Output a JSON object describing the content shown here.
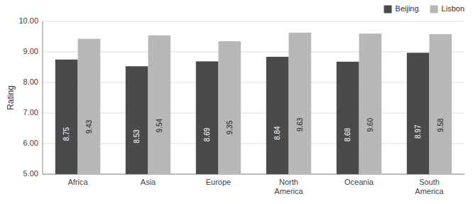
{
  "chart_data": {
    "type": "bar",
    "ylabel": "Rating",
    "categories": [
      "Africa",
      "Asia",
      "Europe",
      "North\nAmerica",
      "Oceania",
      "South\nAmerica"
    ],
    "series": [
      {
        "name": "Beijing",
        "color": "#4a4a4a",
        "values": [
          8.75,
          8.53,
          8.69,
          8.84,
          8.68,
          8.97
        ],
        "value_labels": [
          "8.75",
          "8.53",
          "8.69",
          "8.84",
          "8.68",
          "8.97"
        ]
      },
      {
        "name": "Lisbon",
        "color": "#b8b8b8",
        "values": [
          9.43,
          9.54,
          9.35,
          9.63,
          9.6,
          9.58
        ],
        "value_labels": [
          "9.43",
          "9.54",
          "9.35",
          "9.63",
          "9.60",
          "9.58"
        ]
      }
    ],
    "ylim": [
      5.0,
      10.0
    ],
    "yticks": [
      {
        "value": 5.0,
        "label": "5.00"
      },
      {
        "value": 6.0,
        "label": "6.00"
      },
      {
        "value": 7.0,
        "label": "7.00"
      },
      {
        "value": 8.0,
        "label": "8.00"
      },
      {
        "value": 9.0,
        "label": "9.00"
      },
      {
        "value": 10.0,
        "label": "10.00"
      }
    ],
    "grid": true,
    "legend": "upper right",
    "data_labels": true
  }
}
